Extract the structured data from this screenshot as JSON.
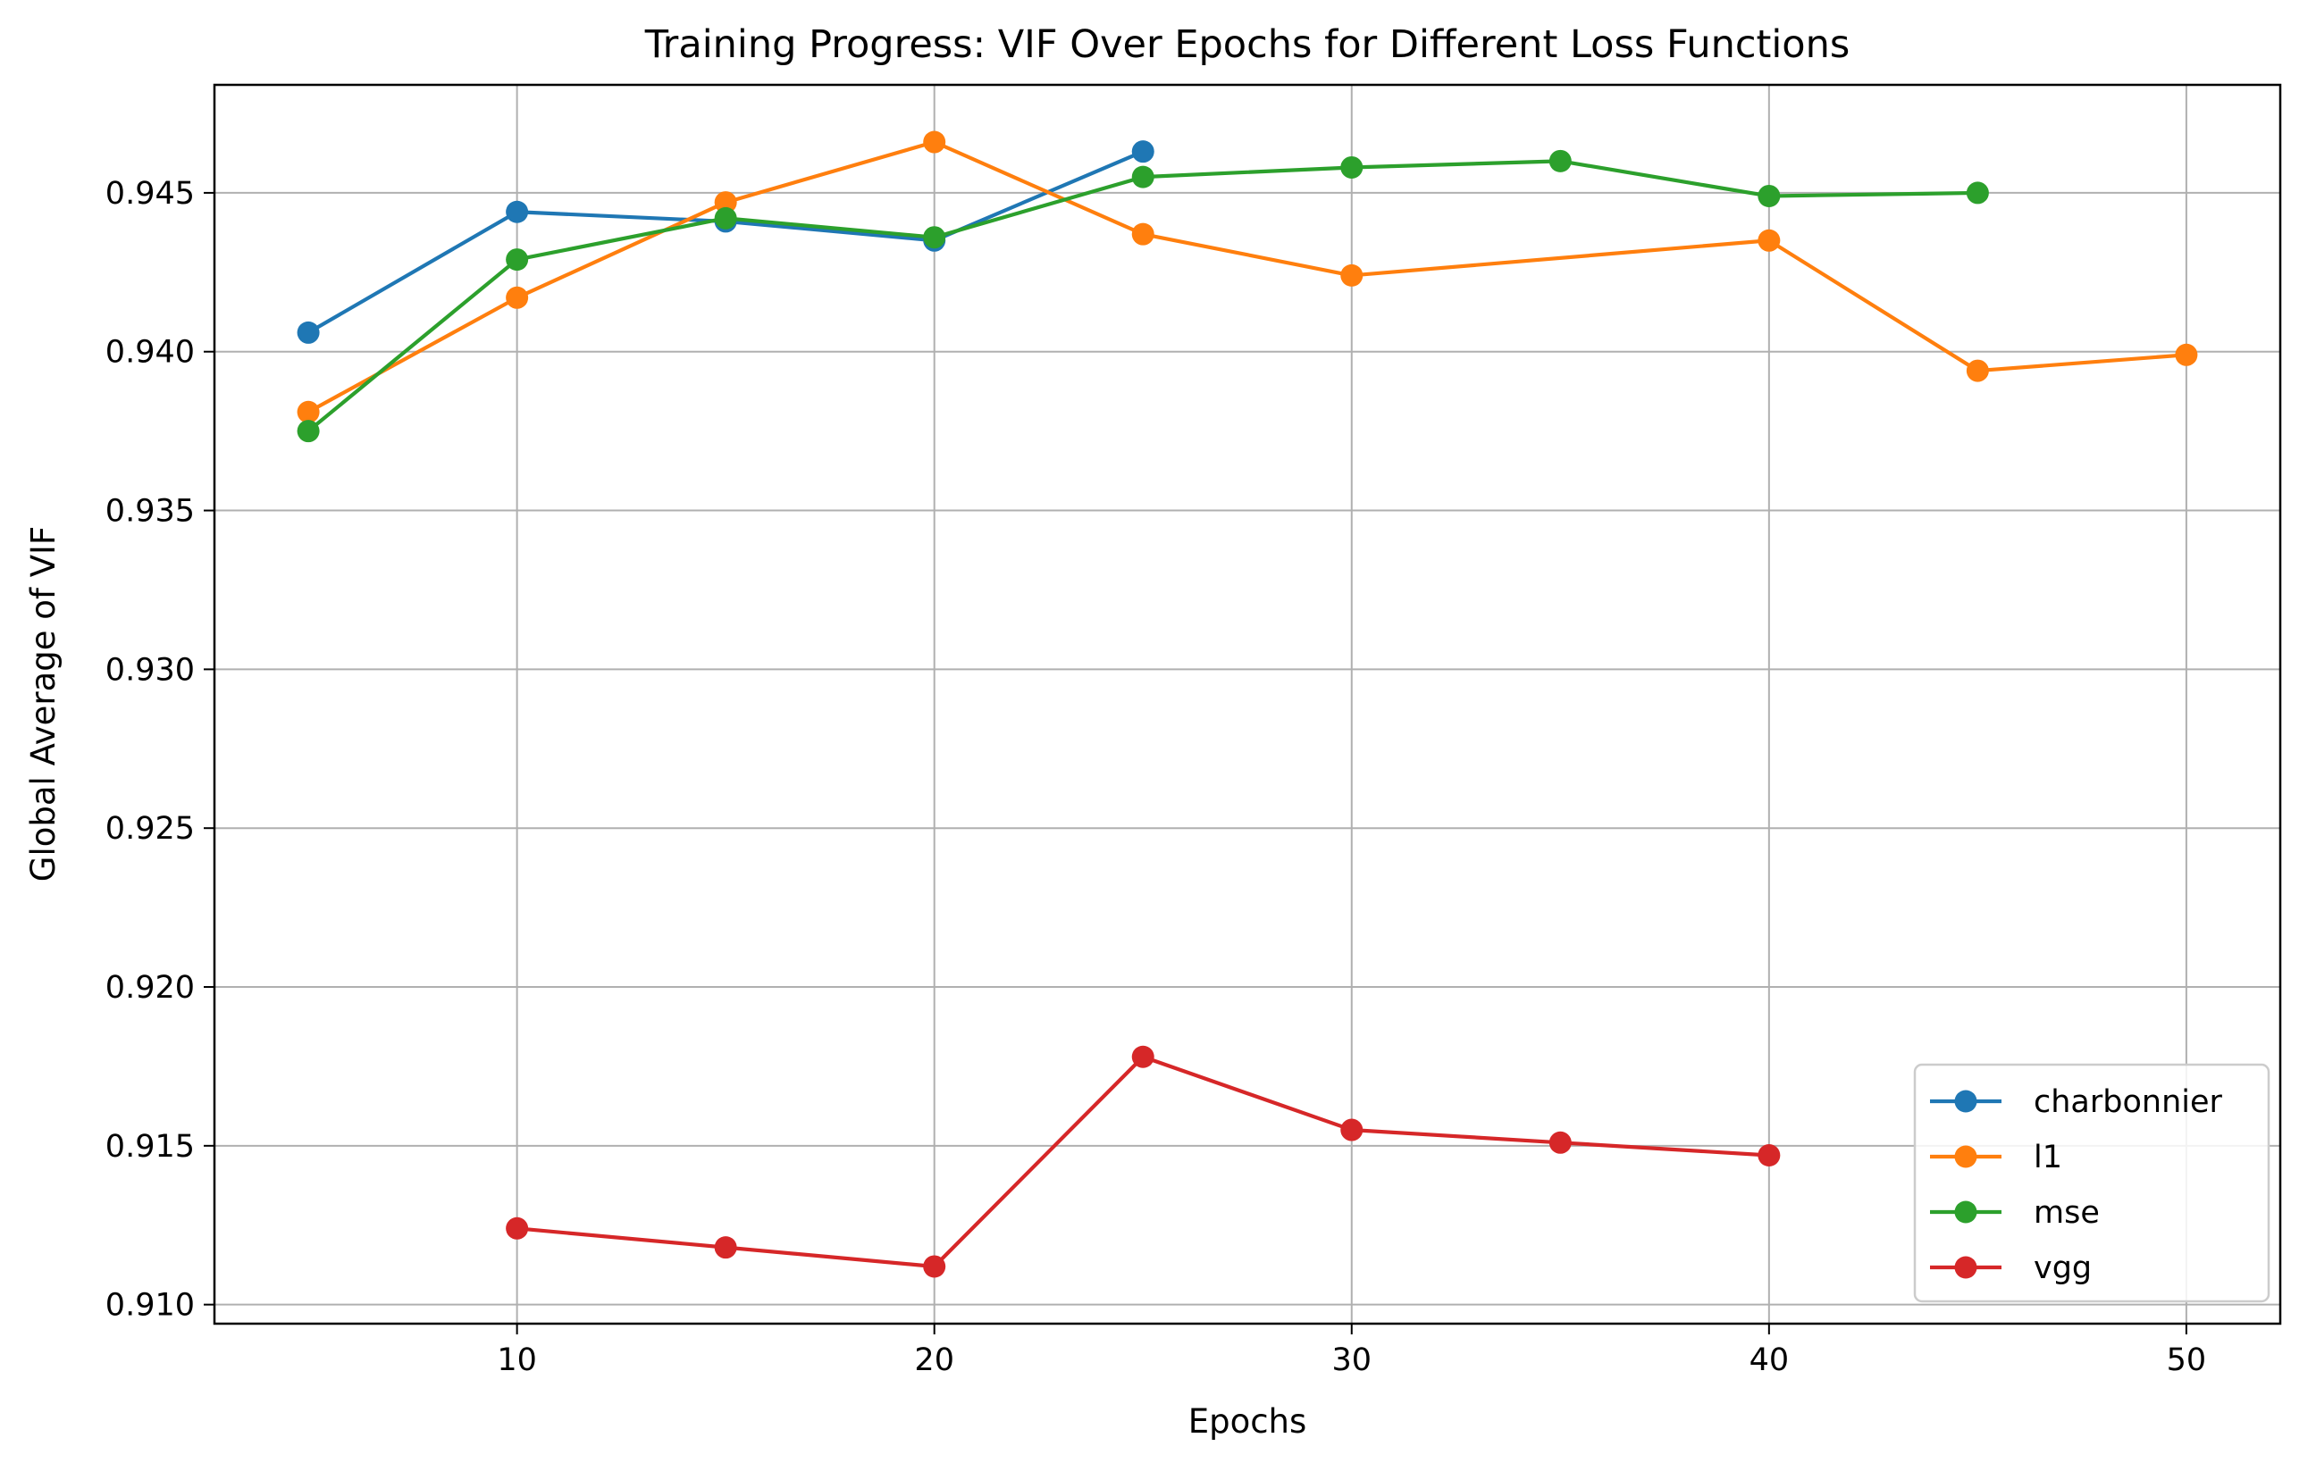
{
  "chart_data": {
    "type": "line",
    "title": "Training Progress: VIF Over Epochs for Different Loss Functions",
    "xlabel": "Epochs",
    "ylabel": "Global Average of VIF",
    "xlim": [
      2.75,
      52.25
    ],
    "ylim": [
      0.9094,
      0.9484
    ],
    "xticks": [
      10,
      20,
      30,
      40,
      50
    ],
    "xtick_labels": [
      "10",
      "20",
      "30",
      "40",
      "50"
    ],
    "yticks": [
      0.91,
      0.915,
      0.92,
      0.925,
      0.93,
      0.935,
      0.94,
      0.945
    ],
    "ytick_labels": [
      "0.910",
      "0.915",
      "0.920",
      "0.925",
      "0.930",
      "0.935",
      "0.940",
      "0.945"
    ],
    "grid": true,
    "legend_position": "lower-right",
    "series": [
      {
        "name": "charbonnier",
        "color": "#1f77b4",
        "x": [
          5,
          10,
          15,
          20,
          25
        ],
        "y": [
          0.9406,
          0.9444,
          0.9441,
          0.9435,
          0.9463
        ]
      },
      {
        "name": "l1",
        "color": "#ff7f0e",
        "x": [
          5,
          10,
          15,
          20,
          25,
          30,
          40,
          45,
          50
        ],
        "y": [
          0.9381,
          0.9417,
          0.9447,
          0.9466,
          0.9437,
          0.9424,
          0.9435,
          0.9394,
          0.9399
        ]
      },
      {
        "name": "mse",
        "color": "#2ca02c",
        "x": [
          5,
          10,
          15,
          20,
          25,
          30,
          35,
          40,
          45
        ],
        "y": [
          0.9375,
          0.9429,
          0.9442,
          0.9436,
          0.9455,
          0.9458,
          0.946,
          0.9449,
          0.945
        ]
      },
      {
        "name": "vgg",
        "color": "#d62728",
        "x": [
          10,
          15,
          20,
          25,
          30,
          35,
          40
        ],
        "y": [
          0.9124,
          0.9118,
          0.9112,
          0.9178,
          0.9155,
          0.9151,
          0.9147
        ]
      }
    ]
  }
}
